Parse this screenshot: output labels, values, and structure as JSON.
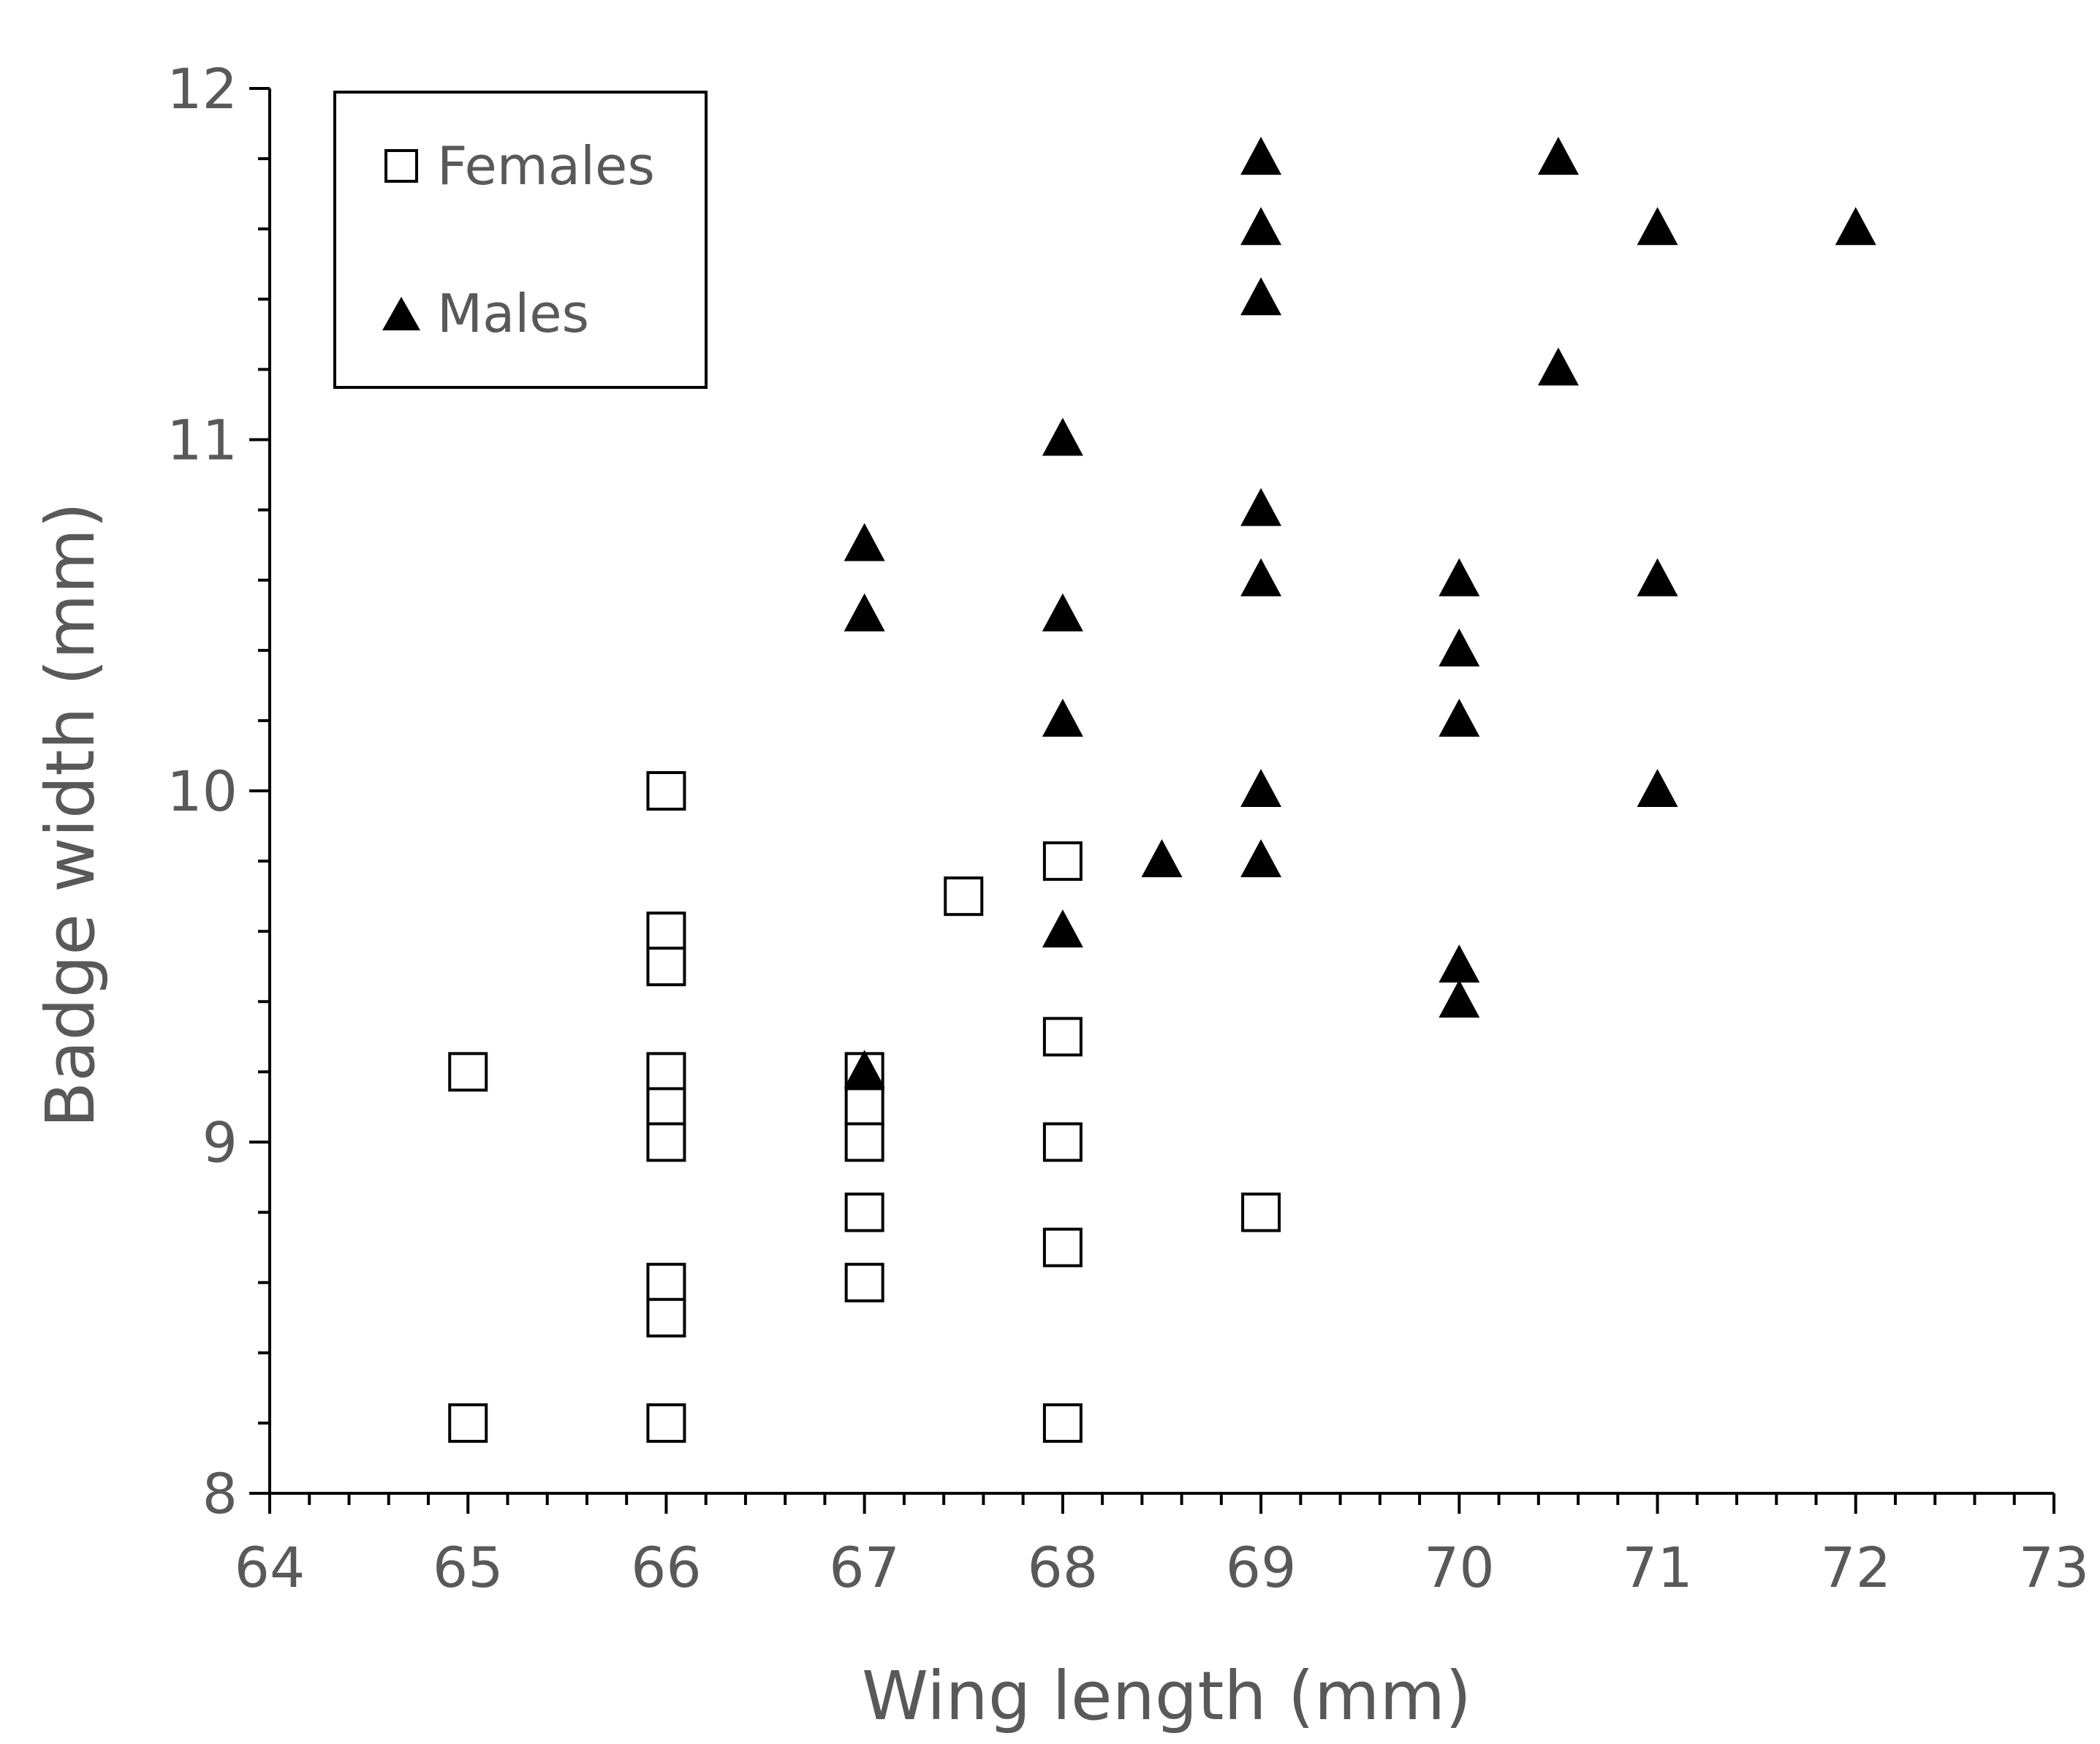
{
  "chart_data": {
    "type": "scatter",
    "title": "",
    "xlabel": "Wing length (mm)",
    "ylabel": "Badge width (mm)",
    "xlim": [
      64,
      73
    ],
    "ylim": [
      8,
      12
    ],
    "x_ticks": [
      64,
      65,
      66,
      67,
      68,
      69,
      70,
      71,
      72,
      73
    ],
    "y_ticks": [
      8,
      9,
      10,
      11,
      12
    ],
    "x_minor_step": 0.2,
    "y_minor_step": 0.2,
    "grid": false,
    "legend_position": "top-left",
    "series": [
      {
        "name": "Females",
        "marker": "hollow-square",
        "color": "#000000",
        "points": [
          [
            65,
            9.2
          ],
          [
            65,
            8.2
          ],
          [
            66,
            10.0
          ],
          [
            66,
            9.6
          ],
          [
            66,
            9.5
          ],
          [
            66,
            9.2
          ],
          [
            66,
            9.1
          ],
          [
            66,
            9.0
          ],
          [
            66,
            8.6
          ],
          [
            66,
            8.5
          ],
          [
            66,
            8.2
          ],
          [
            67,
            9.2
          ],
          [
            67,
            9.1
          ],
          [
            67,
            9.0
          ],
          [
            67,
            8.8
          ],
          [
            67,
            8.6
          ],
          [
            67.5,
            9.7
          ],
          [
            68,
            9.8
          ],
          [
            68,
            9.3
          ],
          [
            68,
            9.0
          ],
          [
            68,
            8.7
          ],
          [
            68,
            8.2
          ],
          [
            69,
            8.8
          ]
        ]
      },
      {
        "name": "Males",
        "marker": "filled-triangle",
        "color": "#000000",
        "points": [
          [
            67,
            10.7
          ],
          [
            67,
            10.5
          ],
          [
            67,
            9.2
          ],
          [
            68,
            11.0
          ],
          [
            68,
            10.5
          ],
          [
            68,
            10.2
          ],
          [
            68,
            9.6
          ],
          [
            68.5,
            9.8
          ],
          [
            69,
            11.8
          ],
          [
            69,
            11.6
          ],
          [
            69,
            11.4
          ],
          [
            69,
            10.8
          ],
          [
            69,
            10.6
          ],
          [
            69,
            10.0
          ],
          [
            69,
            9.8
          ],
          [
            70,
            10.6
          ],
          [
            70,
            10.4
          ],
          [
            70,
            10.2
          ],
          [
            70,
            9.5
          ],
          [
            70,
            9.4
          ],
          [
            70.5,
            11.8
          ],
          [
            70.5,
            11.2
          ],
          [
            71,
            11.6
          ],
          [
            71,
            10.6
          ],
          [
            71,
            10.0
          ],
          [
            72,
            11.6
          ]
        ]
      }
    ]
  }
}
